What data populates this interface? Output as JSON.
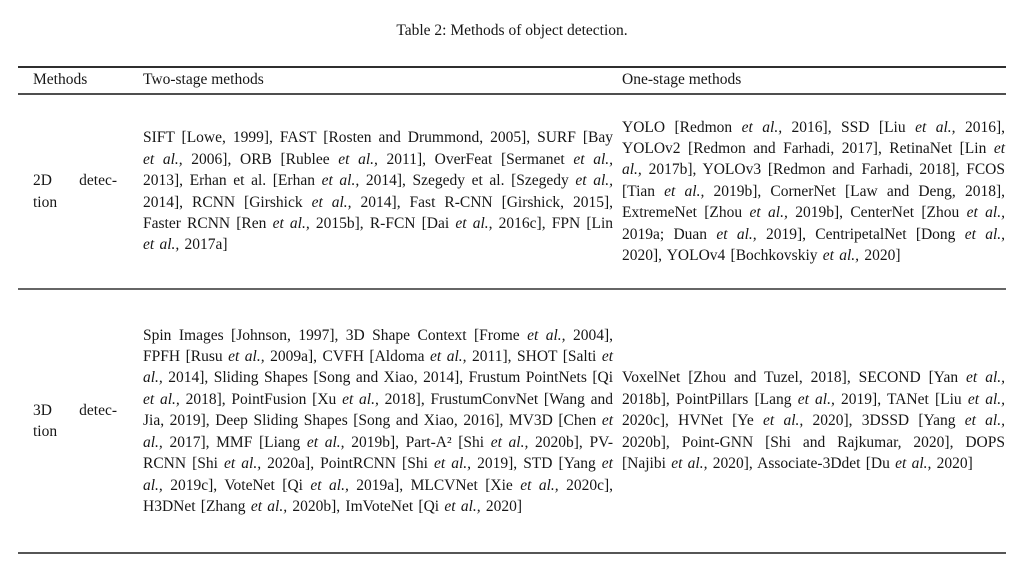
{
  "caption": "Table 2: Methods of object detection.",
  "typography": {
    "italic_phrases": [
      "et al.,"
    ]
  },
  "colors": {
    "background": "#ffffff",
    "text": "#161616",
    "rule_top": "#2f2f2f",
    "rule_inner": "#666666",
    "rule_bottom": "#565656"
  },
  "table": {
    "columns": [
      "Methods",
      "Two-stage methods",
      "One-stage methods"
    ],
    "rows": [
      {
        "method": "2D detection",
        "method_line1": "2D detec-",
        "method_line2": "tion",
        "two_stage": "SIFT [Lowe, 1999], FAST [Rosten and Drummond, 2005], SURF [Bay et al., 2006], ORB [Rublee et al., 2011], OverFeat [Sermanet et al., 2013], Erhan et al. [Erhan et al., 2014], Szegedy et al. [Szegedy et al., 2014], RCNN [Girshick et al., 2014], Fast R-CNN [Girshick, 2015], Faster RCNN [Ren et al., 2015b], R-FCN [Dai et al., 2016c], FPN [Lin et al., 2017a]",
        "one_stage": "YOLO [Redmon et al., 2016], SSD [Liu et al., 2016], YOLOv2 [Redmon and Farhadi, 2017], RetinaNet [Lin et al., 2017b], YOLOv3 [Redmon and Farhadi, 2018], FCOS [Tian et al., 2019b], CornerNet [Law and Deng, 2018], ExtremeNet [Zhou et al., 2019b], CenterNet [Zhou et al., 2019a; Duan et al., 2019], CentripetalNet [Dong et al., 2020], YOLOv4 [Bochkovskiy et al., 2020]"
      },
      {
        "method": "3D detection",
        "method_line1": "3D detec-",
        "method_line2": "tion",
        "two_stage": "Spin Images [Johnson, 1997], 3D Shape Context [Frome et al., 2004], FPFH [Rusu et al., 2009a], CVFH [Aldoma et al., 2011], SHOT [Salti et al., 2014], Sliding Shapes [Song and Xiao, 2014], Frustum PointNets [Qi et al., 2018], PointFusion [Xu et al., 2018], FrustumConvNet [Wang and Jia, 2019], Deep Sliding Shapes [Song and Xiao, 2016], MV3D [Chen et al., 2017], MMF [Liang et al., 2019b], Part-A² [Shi et al., 2020b], PV-RCNN [Shi et al., 2020a], PointRCNN [Shi et al., 2019], STD [Yang et al., 2019c], VoteNet [Qi et al., 2019a], MLCVNet [Xie et al., 2020c], H3DNet [Zhang et al., 2020b], ImVoteNet [Qi et al., 2020]",
        "one_stage": "VoxelNet [Zhou and Tuzel, 2018], SECOND [Yan et al., 2018b], PointPillars [Lang et al., 2019], TANet [Liu et al., 2020c], HVNet [Ye et al., 2020], 3DSSD [Yang et al., 2020b], Point-GNN [Shi and Rajkumar, 2020], DOPS [Najibi et al., 2020], Associate-3Ddet [Du et al., 2020]"
      }
    ]
  }
}
